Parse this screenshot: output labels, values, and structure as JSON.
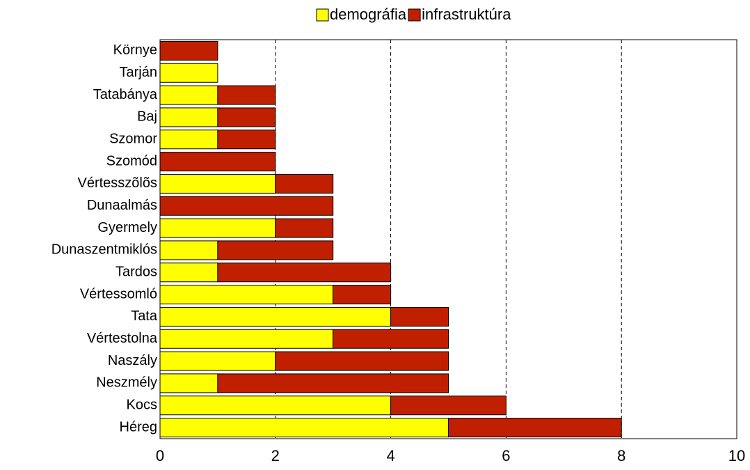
{
  "chart_data": {
    "type": "stacked-barh",
    "categories": [
      "Környe",
      "Tarján",
      "Tatabánya",
      "Baj",
      "Szomor",
      "Szomód",
      "Vértesszõlõs",
      "Dunaalmás",
      "Gyermely",
      "Dunaszentmiklós",
      "Tardos",
      "Vértessomló",
      "Tata",
      "Vértestolna",
      "Naszály",
      "Neszmély",
      "Kocs",
      "Héreg"
    ],
    "series": [
      {
        "name": "demográfia",
        "color": "#ffff00",
        "values": [
          0,
          1,
          1,
          1,
          1,
          0,
          2,
          0,
          2,
          1,
          1,
          3,
          4,
          3,
          2,
          1,
          4,
          5
        ]
      },
      {
        "name": "infrastruktúra",
        "color": "#c02000",
        "values": [
          1,
          0,
          1,
          1,
          1,
          2,
          1,
          3,
          1,
          2,
          3,
          1,
          1,
          2,
          3,
          4,
          2,
          3
        ]
      }
    ],
    "xlim": [
      0,
      10
    ],
    "xticks": [
      0,
      2,
      4,
      6,
      8,
      10
    ],
    "grid": true,
    "legend": "top"
  }
}
